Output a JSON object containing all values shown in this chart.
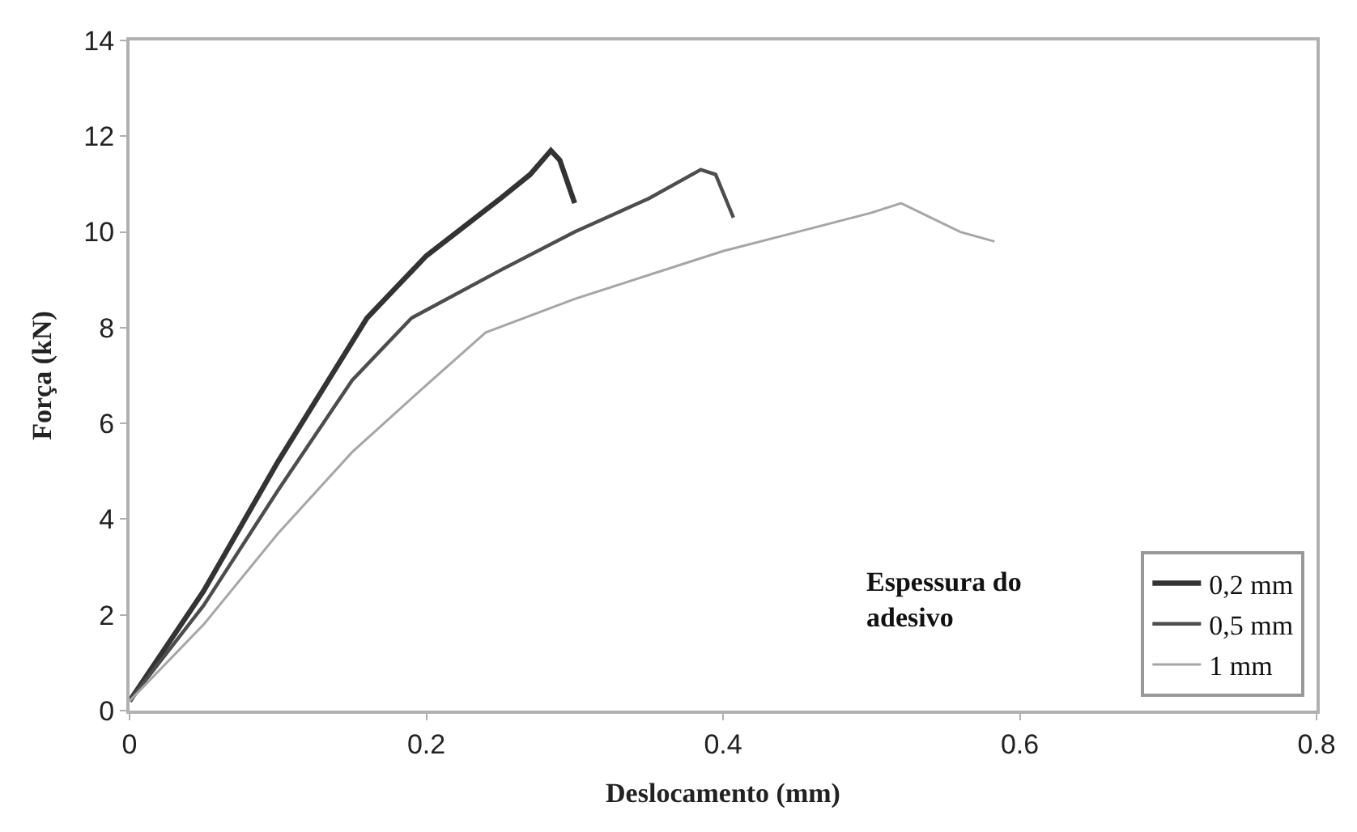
{
  "chart_data": {
    "type": "line",
    "xlabel": "Deslocamento (mm)",
    "ylabel": "Força (kN)",
    "xlim": [
      0,
      0.8
    ],
    "xticks": [
      {
        "value": 0,
        "label": "0"
      },
      {
        "value": 0.2,
        "label": "0.2"
      },
      {
        "value": 0.4,
        "label": "0.4"
      },
      {
        "value": 0.6,
        "label": "0.6"
      },
      {
        "value": 0.8,
        "label": "0.8"
      }
    ],
    "ylim": [
      0,
      14
    ],
    "yticks": [
      0,
      2,
      4,
      6,
      8,
      10,
      12,
      14
    ],
    "legend": "bottom right",
    "marker": "none",
    "line_style": "solid",
    "annotations": [
      "Espessura do\nadesivo"
    ],
    "series": [
      {
        "name": "0,2 mm",
        "color": "#333333",
        "x": [
          0,
          0.05,
          0.1,
          0.16,
          0.2,
          0.25,
          0.27,
          0.284,
          0.29,
          0.3
        ],
        "values": [
          0.2,
          2.5,
          5.2,
          8.2,
          9.5,
          10.7,
          11.2,
          11.7,
          11.5,
          10.6
        ]
      },
      {
        "name": "0,5 mm",
        "color": "#4d4d4d",
        "x": [
          0,
          0.05,
          0.1,
          0.15,
          0.19,
          0.25,
          0.3,
          0.35,
          0.385,
          0.395,
          0.407
        ],
        "values": [
          0.2,
          2.2,
          4.6,
          6.9,
          8.2,
          9.2,
          10.0,
          10.7,
          11.3,
          11.2,
          10.3
        ]
      },
      {
        "name": "1 mm",
        "color": "#a6a6a6",
        "x": [
          0,
          0.05,
          0.1,
          0.15,
          0.2,
          0.24,
          0.3,
          0.35,
          0.4,
          0.45,
          0.5,
          0.52,
          0.54,
          0.56,
          0.583
        ],
        "values": [
          0.2,
          1.8,
          3.7,
          5.4,
          6.8,
          7.9,
          8.6,
          9.1,
          9.6,
          10.0,
          10.4,
          10.6,
          10.3,
          10.0,
          9.8
        ]
      }
    ]
  }
}
